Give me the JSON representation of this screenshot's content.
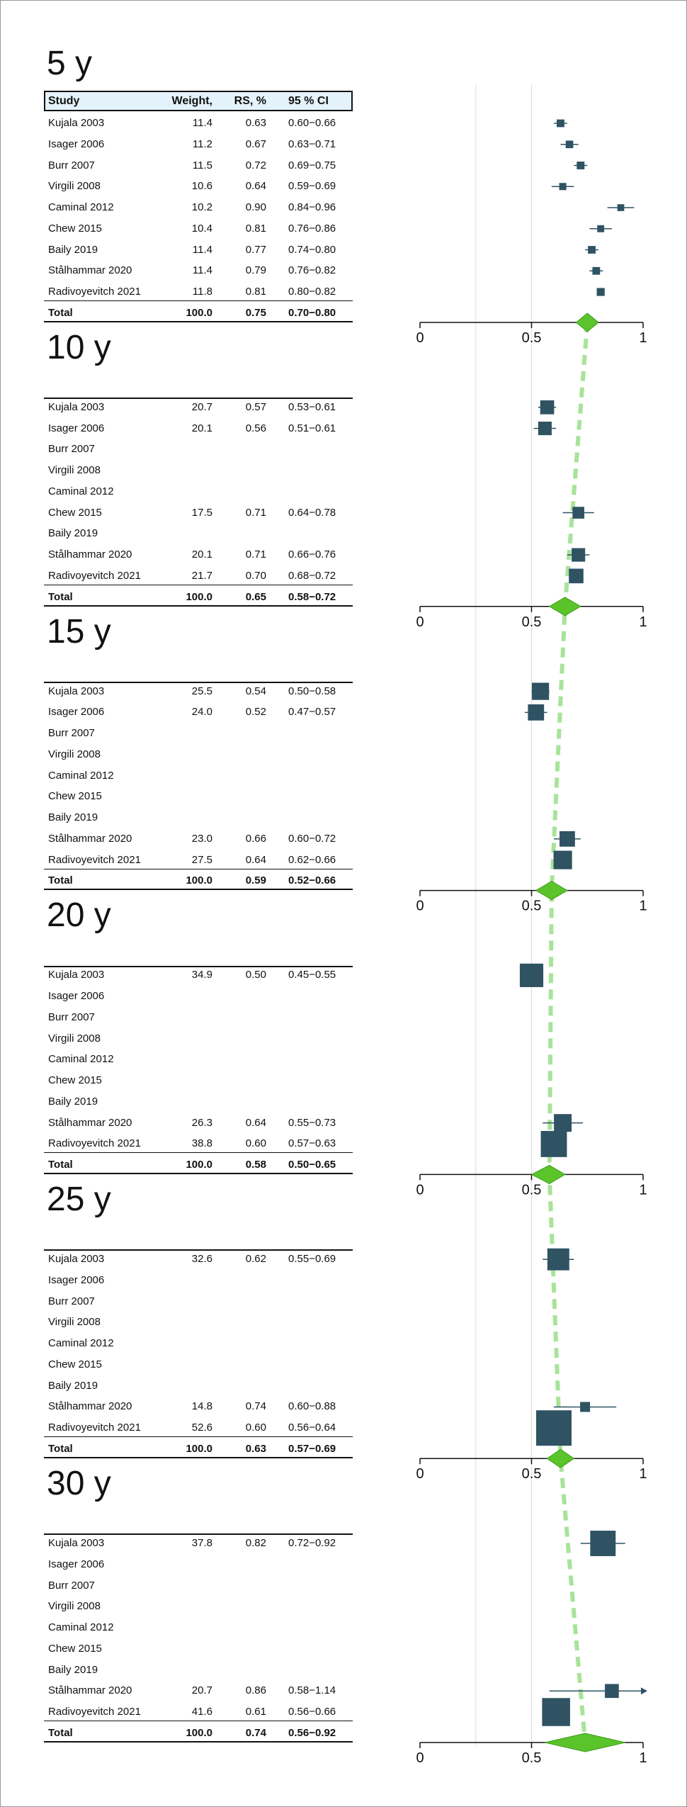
{
  "headers": {
    "study": "Study",
    "weight": "Weight,",
    "rs": "RS, %",
    "ci": "95 % CI"
  },
  "colors": {
    "marker": "#2f5363",
    "diamond": "#5ac42a",
    "trend": "#a8e39a",
    "ref_line": "#dcdcdc"
  },
  "chart_data": {
    "type": "forest",
    "x_axis": {
      "min": 0,
      "max": 1,
      "ticks": [
        "0",
        "0.5",
        "1"
      ]
    },
    "reference_lines": [
      0.25,
      0.5
    ],
    "panels": [
      {
        "period": "5 y",
        "rows": [
          {
            "study": "Kujala 2003",
            "weight": "11.4",
            "rs": "0.63",
            "ci": "0.60−0.66"
          },
          {
            "study": "Isager 2006",
            "weight": "11.2",
            "rs": "0.67",
            "ci": "0.63−0.71"
          },
          {
            "study": "Burr 2007",
            "weight": "11.5",
            "rs": "0.72",
            "ci": "0.69−0.75"
          },
          {
            "study": "Virgili 2008",
            "weight": "10.6",
            "rs": "0.64",
            "ci": "0.59−0.69"
          },
          {
            "study": "Caminal 2012",
            "weight": "10.2",
            "rs": "0.90",
            "ci": "0.84−0.96"
          },
          {
            "study": "Chew 2015",
            "weight": "10.4",
            "rs": "0.81",
            "ci": "0.76−0.86"
          },
          {
            "study": "Baily 2019",
            "weight": "11.4",
            "rs": "0.77",
            "ci": "0.74−0.80"
          },
          {
            "study": "Stålhammar 2020",
            "weight": "11.4",
            "rs": "0.79",
            "ci": "0.76−0.82"
          },
          {
            "study": "Radivoyevitch 2021",
            "weight": "11.8",
            "rs": "0.81",
            "ci": "0.80−0.82"
          }
        ],
        "total": {
          "study": "Total",
          "weight": "100.0",
          "rs": "0.75",
          "ci": "0.70−0.80"
        }
      },
      {
        "period": "10 y",
        "rows": [
          {
            "study": "Kujala 2003",
            "weight": "20.7",
            "rs": "0.57",
            "ci": "0.53−0.61"
          },
          {
            "study": "Isager 2006",
            "weight": "20.1",
            "rs": "0.56",
            "ci": "0.51−0.61"
          },
          {
            "study": "Burr 2007",
            "weight": "",
            "rs": "",
            "ci": ""
          },
          {
            "study": "Virgili 2008",
            "weight": "",
            "rs": "",
            "ci": ""
          },
          {
            "study": "Caminal 2012",
            "weight": "",
            "rs": "",
            "ci": ""
          },
          {
            "study": "Chew 2015",
            "weight": "17.5",
            "rs": "0.71",
            "ci": "0.64−0.78"
          },
          {
            "study": "Baily 2019",
            "weight": "",
            "rs": "",
            "ci": ""
          },
          {
            "study": "Stålhammar 2020",
            "weight": "20.1",
            "rs": "0.71",
            "ci": "0.66−0.76"
          },
          {
            "study": "Radivoyevitch 2021",
            "weight": "21.7",
            "rs": "0.70",
            "ci": "0.68−0.72"
          }
        ],
        "total": {
          "study": "Total",
          "weight": "100.0",
          "rs": "0.65",
          "ci": "0.58−0.72"
        }
      },
      {
        "period": "15 y",
        "rows": [
          {
            "study": "Kujala 2003",
            "weight": "25.5",
            "rs": "0.54",
            "ci": "0.50−0.58"
          },
          {
            "study": "Isager 2006",
            "weight": "24.0",
            "rs": "0.52",
            "ci": "0.47−0.57"
          },
          {
            "study": "Burr 2007",
            "weight": "",
            "rs": "",
            "ci": ""
          },
          {
            "study": "Virgili 2008",
            "weight": "",
            "rs": "",
            "ci": ""
          },
          {
            "study": "Caminal 2012",
            "weight": "",
            "rs": "",
            "ci": ""
          },
          {
            "study": "Chew 2015",
            "weight": "",
            "rs": "",
            "ci": ""
          },
          {
            "study": "Baily 2019",
            "weight": "",
            "rs": "",
            "ci": ""
          },
          {
            "study": "Stålhammar 2020",
            "weight": "23.0",
            "rs": "0.66",
            "ci": "0.60−0.72"
          },
          {
            "study": "Radivoyevitch 2021",
            "weight": "27.5",
            "rs": "0.64",
            "ci": "0.62−0.66"
          }
        ],
        "total": {
          "study": "Total",
          "weight": "100.0",
          "rs": "0.59",
          "ci": "0.52−0.66"
        }
      },
      {
        "period": "20 y",
        "rows": [
          {
            "study": "Kujala 2003",
            "weight": "34.9",
            "rs": "0.50",
            "ci": "0.45−0.55"
          },
          {
            "study": "Isager 2006",
            "weight": "",
            "rs": "",
            "ci": ""
          },
          {
            "study": "Burr 2007",
            "weight": "",
            "rs": "",
            "ci": ""
          },
          {
            "study": "Virgili 2008",
            "weight": "",
            "rs": "",
            "ci": ""
          },
          {
            "study": "Caminal 2012",
            "weight": "",
            "rs": "",
            "ci": ""
          },
          {
            "study": "Chew 2015",
            "weight": "",
            "rs": "",
            "ci": ""
          },
          {
            "study": "Baily 2019",
            "weight": "",
            "rs": "",
            "ci": ""
          },
          {
            "study": "Stålhammar 2020",
            "weight": "26.3",
            "rs": "0.64",
            "ci": "0.55−0.73"
          },
          {
            "study": "Radivoyevitch 2021",
            "weight": "38.8",
            "rs": "0.60",
            "ci": "0.57−0.63"
          }
        ],
        "total": {
          "study": "Total",
          "weight": "100.0",
          "rs": "0.58",
          "ci": "0.50−0.65"
        }
      },
      {
        "period": "25 y",
        "rows": [
          {
            "study": "Kujala 2003",
            "weight": "32.6",
            "rs": "0.62",
            "ci": "0.55−0.69"
          },
          {
            "study": "Isager 2006",
            "weight": "",
            "rs": "",
            "ci": ""
          },
          {
            "study": "Burr 2007",
            "weight": "",
            "rs": "",
            "ci": ""
          },
          {
            "study": "Virgili 2008",
            "weight": "",
            "rs": "",
            "ci": ""
          },
          {
            "study": "Caminal 2012",
            "weight": "",
            "rs": "",
            "ci": ""
          },
          {
            "study": "Chew 2015",
            "weight": "",
            "rs": "",
            "ci": ""
          },
          {
            "study": "Baily 2019",
            "weight": "",
            "rs": "",
            "ci": ""
          },
          {
            "study": "Stålhammar 2020",
            "weight": "14.8",
            "rs": "0.74",
            "ci": "0.60−0.88"
          },
          {
            "study": "Radivoyevitch 2021",
            "weight": "52.6",
            "rs": "0.60",
            "ci": "0.56−0.64"
          }
        ],
        "total": {
          "study": "Total",
          "weight": "100.0",
          "rs": "0.63",
          "ci": "0.57−0.69"
        }
      },
      {
        "period": "30 y",
        "rows": [
          {
            "study": "Kujala 2003",
            "weight": "37.8",
            "rs": "0.82",
            "ci": "0.72−0.92"
          },
          {
            "study": "Isager 2006",
            "weight": "",
            "rs": "",
            "ci": ""
          },
          {
            "study": "Burr 2007",
            "weight": "",
            "rs": "",
            "ci": ""
          },
          {
            "study": "Virgili 2008",
            "weight": "",
            "rs": "",
            "ci": ""
          },
          {
            "study": "Caminal 2012",
            "weight": "",
            "rs": "",
            "ci": ""
          },
          {
            "study": "Chew 2015",
            "weight": "",
            "rs": "",
            "ci": ""
          },
          {
            "study": "Baily 2019",
            "weight": "",
            "rs": "",
            "ci": ""
          },
          {
            "study": "Stålhammar 2020",
            "weight": "20.7",
            "rs": "0.86",
            "ci": "0.58−1.14"
          },
          {
            "study": "Radivoyevitch 2021",
            "weight": "41.6",
            "rs": "0.61",
            "ci": "0.56−0.66"
          }
        ],
        "total": {
          "study": "Total",
          "weight": "100.0",
          "rs": "0.74",
          "ci": "0.56−0.92"
        }
      }
    ]
  }
}
